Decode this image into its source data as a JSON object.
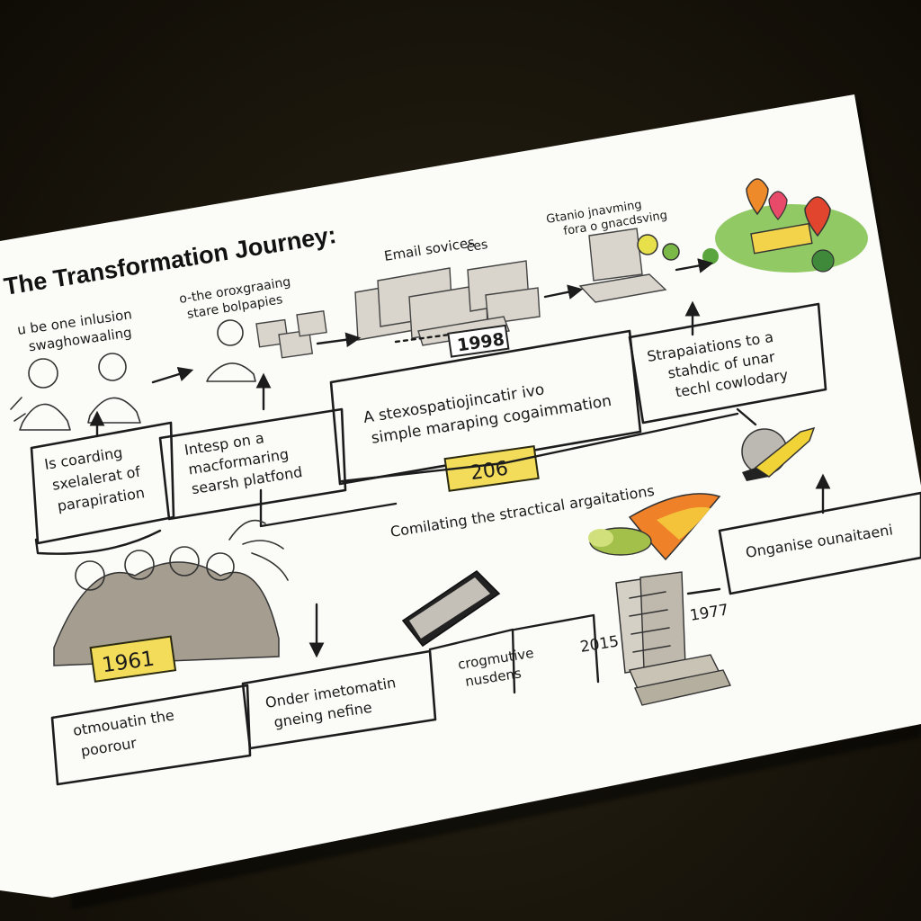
{
  "title": "The Transformation Journey:",
  "top_left_caption": [
    "u be one inlusion",
    "swaghowaaling"
  ],
  "caption_portraits": [
    "o-the oroxgraaing",
    "stare bolpapies"
  ],
  "caption_email": [
    "Email sovices",
    "ces"
  ],
  "caption_laptop": [
    "Gtanio jnavming",
    "fora o gnacdsving"
  ],
  "year_1998": "1998",
  "box_left": [
    "Is coarding",
    "sxelalerat of",
    "parapiration"
  ],
  "box_search": [
    "Intesp on a",
    "macformaring",
    "searsh platfond"
  ],
  "box_center": [
    "A stexospatiojincatir ivo",
    "simple maraping cogaimmation"
  ],
  "box_right": [
    "Strapaiations to a",
    "stahdic of unar",
    "techl cowlodary"
  ],
  "year_206": "206",
  "caption_compiling": "Comilating the stractical argaitations",
  "box_organise": "Onganise ounaitaeni",
  "year_1961": "1961",
  "box_bottom_left": [
    "otmouatin the",
    "poorour"
  ],
  "box_bottom_mid": [
    "Onder imetomatin",
    "gneing nefine"
  ],
  "caption_orgmutive": [
    "crogmutive",
    "nusdens"
  ],
  "year_2015": "2015",
  "year_1977": "1977"
}
